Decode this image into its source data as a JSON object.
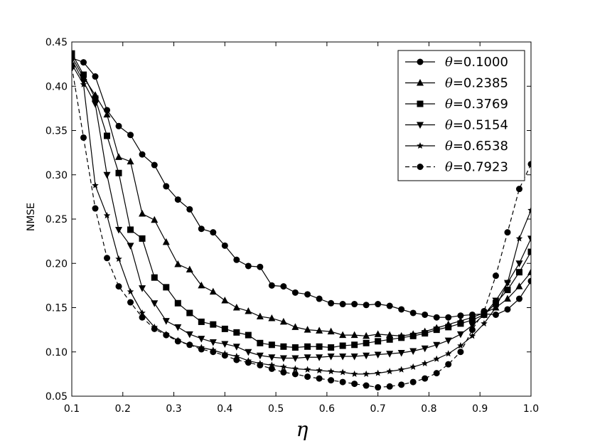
{
  "chart_data": {
    "type": "line",
    "xlabel": "η",
    "ylabel": "NMSE",
    "xlim": [
      0.1,
      1.0
    ],
    "ylim": [
      0.05,
      0.45
    ],
    "xticks": [
      "0.1",
      "0.2",
      "0.3",
      "0.4",
      "0.5",
      "0.6",
      "0.7",
      "0.8",
      "0.9",
      "1.0"
    ],
    "yticks": [
      "0.05",
      "0.10",
      "0.15",
      "0.20",
      "0.25",
      "0.30",
      "0.35",
      "0.40",
      "0.45"
    ],
    "grid": false,
    "legend_position": "top-right",
    "x": [
      0.1,
      0.123,
      0.146,
      0.169,
      0.192,
      0.215,
      0.238,
      0.262,
      0.285,
      0.308,
      0.331,
      0.354,
      0.377,
      0.4,
      0.423,
      0.446,
      0.469,
      0.492,
      0.515,
      0.538,
      0.562,
      0.585,
      0.608,
      0.631,
      0.654,
      0.677,
      0.7,
      0.723,
      0.746,
      0.769,
      0.792,
      0.815,
      0.838,
      0.862,
      0.885,
      0.908,
      0.931,
      0.954,
      0.977,
      1.0
    ],
    "series": [
      {
        "name": "θ=0.1000",
        "theta": "0.1000",
        "marker": "circle",
        "dash": "solid",
        "values": [
          0.432,
          0.427,
          0.411,
          0.373,
          0.355,
          0.345,
          0.323,
          0.311,
          0.287,
          0.272,
          0.261,
          0.239,
          0.235,
          0.22,
          0.204,
          0.197,
          0.196,
          0.175,
          0.174,
          0.167,
          0.165,
          0.16,
          0.155,
          0.154,
          0.154,
          0.153,
          0.154,
          0.152,
          0.148,
          0.144,
          0.142,
          0.139,
          0.139,
          0.141,
          0.142,
          0.143,
          0.142,
          0.148,
          0.16,
          0.18
        ]
      },
      {
        "name": "θ=0.2385",
        "theta": "0.2385",
        "marker": "triangle-up",
        "dash": "solid",
        "values": [
          0.433,
          0.41,
          0.39,
          0.368,
          0.32,
          0.315,
          0.256,
          0.249,
          0.224,
          0.199,
          0.193,
          0.175,
          0.168,
          0.158,
          0.15,
          0.146,
          0.14,
          0.138,
          0.134,
          0.128,
          0.125,
          0.124,
          0.123,
          0.119,
          0.119,
          0.118,
          0.12,
          0.119,
          0.118,
          0.12,
          0.123,
          0.127,
          0.131,
          0.135,
          0.139,
          0.144,
          0.15,
          0.16,
          0.174,
          0.19
        ]
      },
      {
        "name": "θ=0.3769",
        "theta": "0.3769",
        "marker": "square",
        "dash": "solid",
        "values": [
          0.437,
          0.413,
          0.386,
          0.344,
          0.302,
          0.238,
          0.228,
          0.184,
          0.173,
          0.155,
          0.144,
          0.134,
          0.131,
          0.126,
          0.122,
          0.119,
          0.11,
          0.108,
          0.106,
          0.105,
          0.106,
          0.106,
          0.105,
          0.107,
          0.108,
          0.11,
          0.112,
          0.114,
          0.116,
          0.118,
          0.121,
          0.125,
          0.128,
          0.132,
          0.136,
          0.142,
          0.155,
          0.17,
          0.19,
          0.213
        ]
      },
      {
        "name": "θ=0.5154",
        "theta": "0.5154",
        "marker": "triangle-down",
        "dash": "solid",
        "values": [
          0.43,
          0.405,
          0.38,
          0.3,
          0.238,
          0.22,
          0.172,
          0.155,
          0.135,
          0.128,
          0.12,
          0.115,
          0.111,
          0.109,
          0.106,
          0.1,
          0.096,
          0.094,
          0.093,
          0.093,
          0.094,
          0.094,
          0.095,
          0.095,
          0.095,
          0.096,
          0.097,
          0.098,
          0.099,
          0.101,
          0.104,
          0.108,
          0.113,
          0.12,
          0.13,
          0.142,
          0.158,
          0.178,
          0.2,
          0.228
        ]
      },
      {
        "name": "θ=0.6538",
        "theta": "0.6538",
        "marker": "star",
        "dash": "solid",
        "values": [
          0.425,
          0.402,
          0.288,
          0.254,
          0.205,
          0.168,
          0.144,
          0.128,
          0.12,
          0.113,
          0.108,
          0.105,
          0.102,
          0.098,
          0.095,
          0.09,
          0.087,
          0.085,
          0.083,
          0.081,
          0.08,
          0.079,
          0.078,
          0.077,
          0.075,
          0.075,
          0.076,
          0.078,
          0.08,
          0.083,
          0.087,
          0.092,
          0.098,
          0.107,
          0.118,
          0.132,
          0.15,
          0.178,
          0.228,
          0.26
        ]
      },
      {
        "name": "θ=0.7923",
        "theta": "0.7923",
        "marker": "circle",
        "dash": "dashed",
        "values": [
          0.422,
          0.342,
          0.262,
          0.206,
          0.174,
          0.156,
          0.139,
          0.126,
          0.119,
          0.112,
          0.108,
          0.103,
          0.1,
          0.096,
          0.091,
          0.088,
          0.085,
          0.081,
          0.077,
          0.075,
          0.072,
          0.07,
          0.068,
          0.066,
          0.064,
          0.062,
          0.06,
          0.061,
          0.063,
          0.066,
          0.07,
          0.076,
          0.086,
          0.1,
          0.125,
          0.146,
          0.186,
          0.235,
          0.284,
          0.312
        ]
      }
    ]
  }
}
